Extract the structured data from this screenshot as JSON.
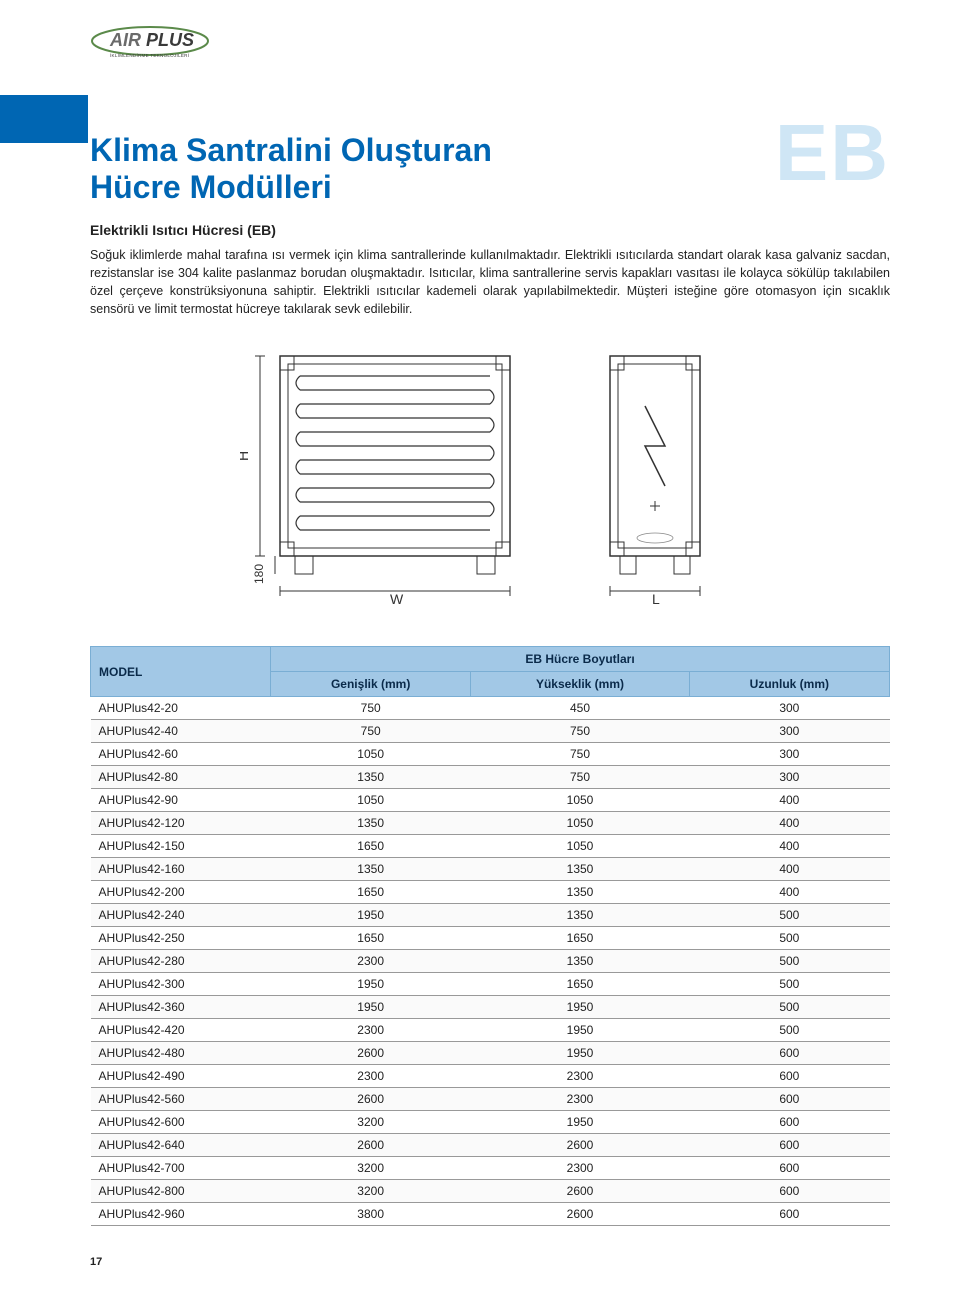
{
  "logo": {
    "brand_air": "AIR",
    "brand_plus": "PLUS",
    "tagline": "İKLİMLENDİRME TEKNOLOJİLERİ",
    "outline_color": "#5b8a4a",
    "text_color": "#3a3a3a"
  },
  "colors": {
    "primary_blue": "#0066b3",
    "eb_tint": "#cfe6f5",
    "table_header_bg": "#a2c8e6",
    "table_header_border": "#7aaed4",
    "table_header_text": "#0a2a4a",
    "row_border": "#999999"
  },
  "title_line1": "Klima Santralini Oluşturan",
  "title_line2": "Hücre Modülleri",
  "code_label": "EB",
  "subtitle": "Elektrikli Isıtıcı Hücresi (EB)",
  "body": "Soğuk iklimlerde mahal tarafına ısı vermek için klima santrallerinde kullanılmaktadır. Elektrikli ısıtıcılarda standart olarak kasa galvaniz sacdan, rezistanslar ise 304 kalite paslanmaz borudan oluşmaktadır. Isıtıcılar, klima santrallerine servis kapakları vasıtası ile kolayca sökülüp takılabilen özel çerçeve konstrüksiyonuna sahiptir. Elektrikli ısıtıcılar kademeli olarak yapılabilmektedir. Müşteri isteğine göre otomasyon için sıcaklık sensörü ve limit termostat hücreye takılarak sevk edilebilir.",
  "diagram": {
    "dim_H": "H",
    "dim_W": "W",
    "dim_L": "L",
    "base_offset": "180",
    "front_width": 260,
    "front_height": 220,
    "side_width": 100,
    "side_height": 220,
    "stroke": "#333333",
    "coil_count": 11
  },
  "table": {
    "caption": "EB Hücre Boyutları",
    "model_header": "MODEL",
    "columns": [
      "Genişlik (mm)",
      "Yükseklik (mm)",
      "Uzunluk (mm)"
    ],
    "rows": [
      [
        "AHUPlus42-20",
        "750",
        "450",
        "300"
      ],
      [
        "AHUPlus42-40",
        "750",
        "750",
        "300"
      ],
      [
        "AHUPlus42-60",
        "1050",
        "750",
        "300"
      ],
      [
        "AHUPlus42-80",
        "1350",
        "750",
        "300"
      ],
      [
        "AHUPlus42-90",
        "1050",
        "1050",
        "400"
      ],
      [
        "AHUPlus42-120",
        "1350",
        "1050",
        "400"
      ],
      [
        "AHUPlus42-150",
        "1650",
        "1050",
        "400"
      ],
      [
        "AHUPlus42-160",
        "1350",
        "1350",
        "400"
      ],
      [
        "AHUPlus42-200",
        "1650",
        "1350",
        "400"
      ],
      [
        "AHUPlus42-240",
        "1950",
        "1350",
        "500"
      ],
      [
        "AHUPlus42-250",
        "1650",
        "1650",
        "500"
      ],
      [
        "AHUPlus42-280",
        "2300",
        "1350",
        "500"
      ],
      [
        "AHUPlus42-300",
        "1950",
        "1650",
        "500"
      ],
      [
        "AHUPlus42-360",
        "1950",
        "1950",
        "500"
      ],
      [
        "AHUPlus42-420",
        "2300",
        "1950",
        "500"
      ],
      [
        "AHUPlus42-480",
        "2600",
        "1950",
        "600"
      ],
      [
        "AHUPlus42-490",
        "2300",
        "2300",
        "600"
      ],
      [
        "AHUPlus42-560",
        "2600",
        "2300",
        "600"
      ],
      [
        "AHUPlus42-600",
        "3200",
        "1950",
        "600"
      ],
      [
        "AHUPlus42-640",
        "2600",
        "2600",
        "600"
      ],
      [
        "AHUPlus42-700",
        "3200",
        "2300",
        "600"
      ],
      [
        "AHUPlus42-800",
        "3200",
        "2600",
        "600"
      ],
      [
        "AHUPlus42-960",
        "3800",
        "2600",
        "600"
      ]
    ]
  },
  "page_number": "17"
}
